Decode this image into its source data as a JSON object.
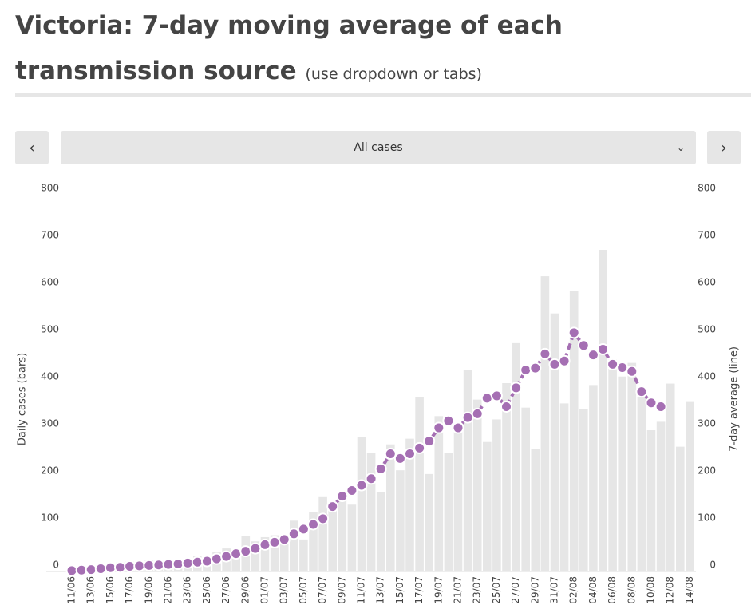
{
  "header": {
    "title": "Victoria: 7-day moving average of each transmission source",
    "subtitle": "(use dropdown or tabs)"
  },
  "controls": {
    "prev": "‹",
    "dropdown": "All cases",
    "next": "›"
  },
  "chart_data": {
    "type": "bar-line",
    "y_label": "Daily cases (bars)",
    "y2_label": "7-day average (line)",
    "categories": [
      "11/06",
      null,
      "13/06",
      null,
      "15/06",
      null,
      "17/06",
      null,
      "19/06",
      null,
      "21/06",
      null,
      "23/06",
      null,
      "25/06",
      null,
      "27/06",
      null,
      "29/06",
      null,
      "01/07",
      null,
      "03/07",
      null,
      "05/07",
      null,
      "07/07",
      null,
      "09/07",
      null,
      "11/07",
      null,
      "13/07",
      null,
      "15/07",
      null,
      "17/07",
      null,
      "19/07",
      null,
      "21/07",
      null,
      "23/07",
      null,
      "25/07",
      null,
      "27/07",
      null,
      "29/07",
      null,
      "31/07",
      null,
      "02/08",
      null,
      "04/08",
      null,
      "06/08",
      null,
      "08/08",
      null,
      "10/08",
      null,
      "12/08",
      null,
      "14/08"
    ],
    "series": [
      {
        "name": "Daily cases",
        "color": "#e6e6e6",
        "values": [
          8,
          12,
          5,
          11,
          12,
          19,
          21,
          13,
          25,
          24,
          16,
          17,
          20,
          33,
          30,
          41,
          49,
          41,
          75,
          64,
          73,
          77,
          66,
          108,
          68,
          127,
          158,
          134,
          165,
          142,
          285,
          251,
          168,
          270,
          215,
          282,
          371,
          207,
          330,
          252,
          300,
          428,
          365,
          275,
          323,
          400,
          485,
          348,
          260,
          627,
          548,
          357,
          596,
          345,
          396,
          683,
          450,
          414,
          443,
          370,
          300,
          318,
          399,
          265,
          360
        ]
      },
      {
        "name": "7-day average",
        "color": "#a56fb3",
        "axis": "y2",
        "values": [
          2,
          3,
          4,
          6,
          8,
          9,
          11,
          12,
          13,
          14,
          15,
          16,
          18,
          20,
          22,
          27,
          32,
          38,
          43,
          49,
          57,
          62,
          68,
          80,
          90,
          100,
          112,
          138,
          160,
          172,
          183,
          197,
          218,
          250,
          240,
          250,
          262,
          277,
          305,
          320,
          305,
          327,
          335,
          368,
          373,
          350,
          390,
          428,
          432,
          462,
          440,
          447,
          507,
          480,
          460,
          472,
          440,
          433,
          425,
          382,
          358,
          350,
          null,
          null,
          null
        ]
      }
    ],
    "ylim": [
      0,
      800
    ],
    "yticks": [
      0,
      100,
      200,
      300,
      400,
      500,
      600,
      700,
      800
    ],
    "y2lim": [
      0,
      800
    ],
    "y2ticks": [
      0,
      100,
      200,
      300,
      400,
      500,
      600,
      700,
      800
    ]
  }
}
